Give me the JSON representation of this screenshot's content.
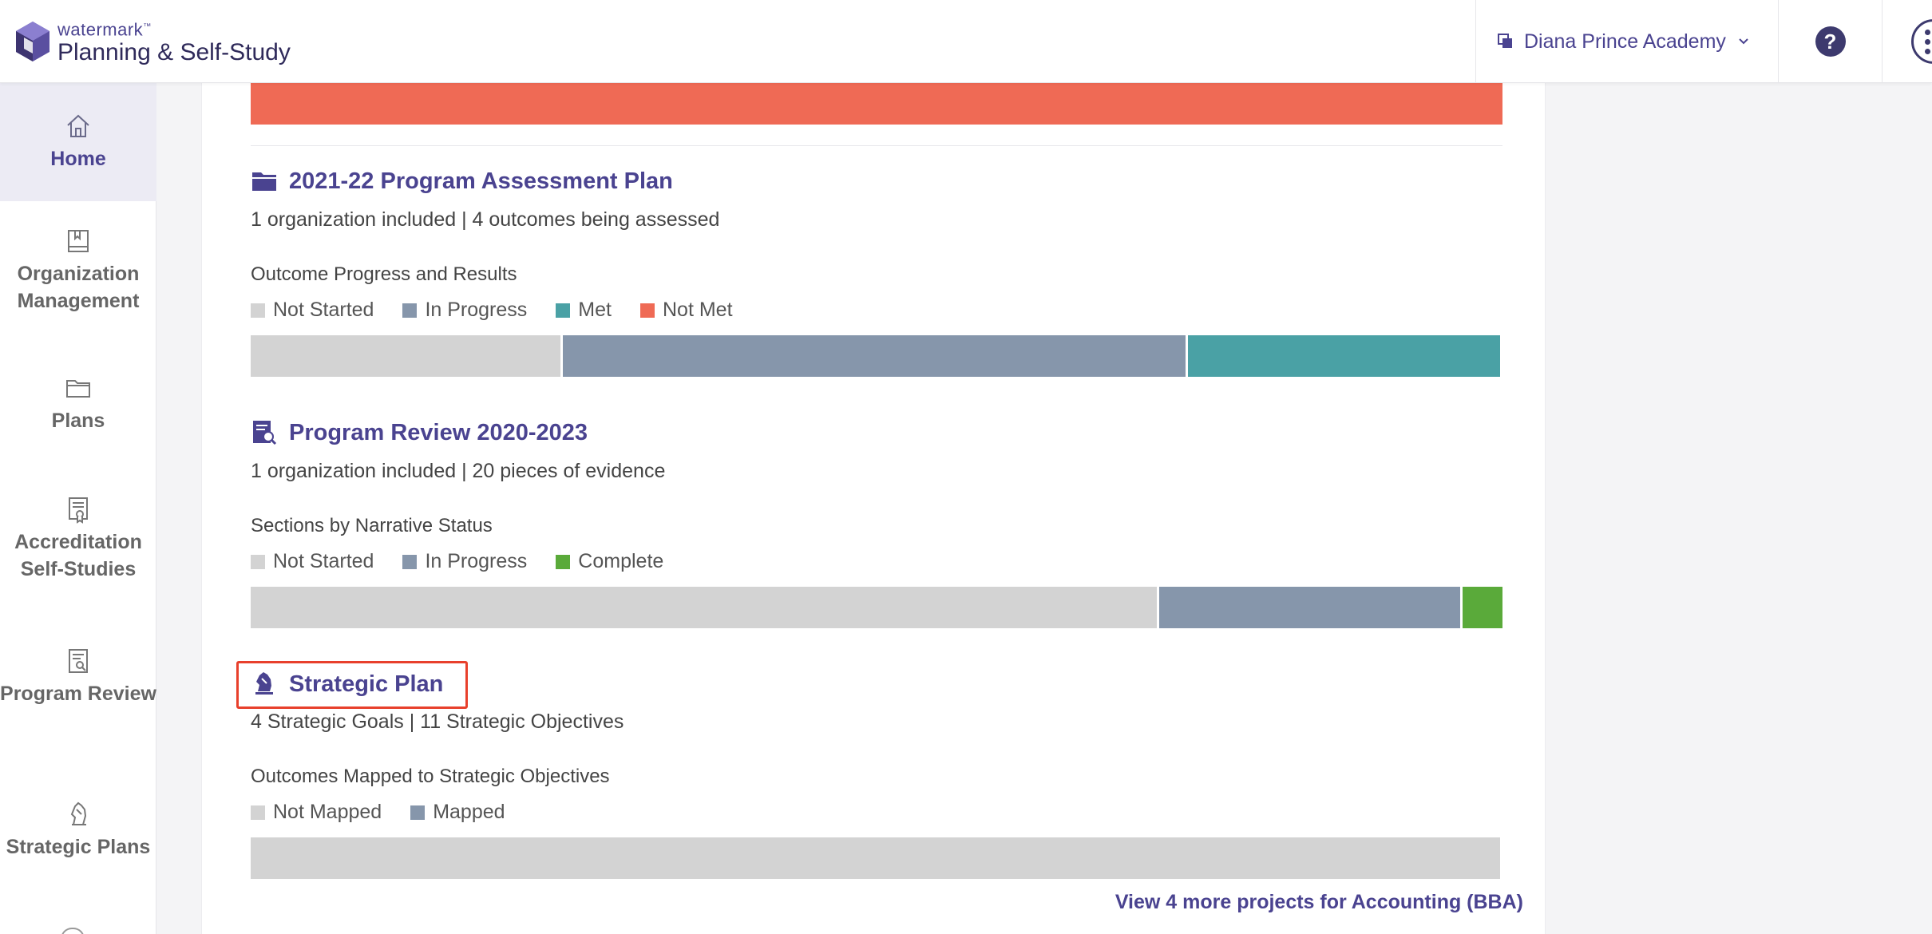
{
  "header": {
    "logo_small": "watermark",
    "logo_tm": "™",
    "logo_product": "Planning & Self-Study",
    "org_name": "Diana Prince Academy",
    "help_label": "?"
  },
  "sidebar": {
    "items": [
      {
        "label": "Home",
        "icon": "home-icon",
        "active": true
      },
      {
        "label": "Organization Management",
        "icon": "book-icon"
      },
      {
        "label": "Plans",
        "icon": "folder-icon"
      },
      {
        "label": "Accreditation Self-Studies",
        "icon": "certificate-icon"
      },
      {
        "label": "Program Review",
        "icon": "document-search-icon"
      },
      {
        "label": "Strategic Plans",
        "icon": "chess-knight-icon"
      }
    ]
  },
  "colors": {
    "not_started": "#d3d3d3",
    "in_progress": "#8696ab",
    "met": "#4aa1a5",
    "not_met": "#ef6a55",
    "complete": "#5aaa3a",
    "accent": "#4a4390"
  },
  "projects": [
    {
      "title": "2021-22 Program Assessment Plan",
      "icon": "folder-filled-icon",
      "subtitle": "1 organization included | 4 outcomes being assessed",
      "section": "Outcome Progress and Results",
      "legend": [
        "Not Started",
        "In Progress",
        "Met",
        "Not Met"
      ],
      "progress": {
        "Not Started": 25,
        "In Progress": 50,
        "Met": 25,
        "Not Met": 0
      }
    },
    {
      "title": "Program Review 2020-2023",
      "icon": "program-review-icon",
      "subtitle": "1 organization included | 20 pieces of evidence",
      "section": "Sections by Narrative Status",
      "legend": [
        "Not Started",
        "In Progress",
        "Complete"
      ],
      "progress": {
        "Not Started": 72.6,
        "In Progress": 24.2,
        "Complete": 3.2
      }
    },
    {
      "title": "Strategic Plan",
      "icon": "chess-knight-icon",
      "subtitle": "4 Strategic Goals | 11 Strategic Objectives",
      "section": "Outcomes Mapped to Strategic Objectives",
      "legend": [
        "Not Mapped",
        "Mapped"
      ],
      "progress": {
        "Not Mapped": 100,
        "Mapped": 0
      }
    }
  ],
  "footer": {
    "view_more": "View 4 more projects for Accounting (BBA)"
  }
}
